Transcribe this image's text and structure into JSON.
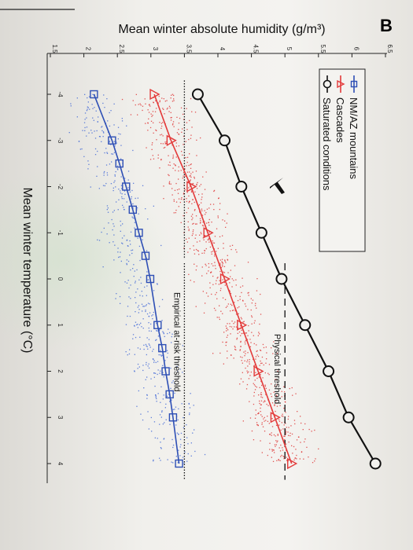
{
  "panel_letter": "B",
  "chart_data": {
    "type": "scatter",
    "orientation": "rotated 90° clockwise (photo of printed page)",
    "xlabel": "Mean winter temperature (°C)",
    "ylabel": "Mean winter absolute humidity (g/m³)",
    "xlim": [
      -4.6,
      4.6
    ],
    "ylim": [
      1.5,
      6.5
    ],
    "xticks": [
      -4,
      -3,
      -2,
      -1,
      0,
      1,
      2,
      3,
      4
    ],
    "yticks": [
      1.5,
      2,
      2.5,
      3,
      3.5,
      4,
      4.5,
      5,
      5.5,
      6,
      6.5
    ],
    "legend_position": "top-left",
    "series": [
      {
        "name": "NM/AZ mountains",
        "color": "#2e4fb5",
        "marker": "square",
        "x": [
          -4,
          -3,
          -2.5,
          -2,
          -1.5,
          -1,
          -0.5,
          0,
          1,
          1.5,
          2,
          2.5,
          3,
          4
        ],
        "y": [
          2.15,
          2.42,
          2.53,
          2.63,
          2.73,
          2.82,
          2.92,
          2.99,
          3.1,
          3.17,
          3.22,
          3.28,
          3.33,
          3.42
        ]
      },
      {
        "name": "Cascades",
        "color": "#e33a3a",
        "marker": "triangle",
        "x": [
          -4,
          -3,
          -2,
          -1,
          0,
          1,
          2,
          3,
          4
        ],
        "y": [
          3.05,
          3.3,
          3.6,
          3.85,
          4.1,
          4.35,
          4.6,
          4.85,
          5.1
        ]
      },
      {
        "name": "Saturated conditions",
        "color": "#111111",
        "marker": "circle",
        "x": [
          -4,
          -3,
          -2,
          -1,
          0,
          1,
          2,
          3,
          4
        ],
        "y": [
          3.7,
          4.1,
          4.35,
          4.65,
          4.95,
          5.3,
          5.65,
          5.95,
          6.35
        ]
      }
    ],
    "scatter_clouds": [
      {
        "series": "NM/AZ mountains",
        "color": "#3b63d6",
        "x_range": [
          -4,
          4
        ],
        "y_center_at_xmin": 2.15,
        "y_center_at_xmax": 3.42,
        "y_spread": 0.55
      },
      {
        "series": "Cascades",
        "color": "#dd2c2c",
        "x_range": [
          -4,
          4
        ],
        "y_center_at_xmin": 3.05,
        "y_center_at_xmax": 5.1,
        "y_spread": 0.6
      }
    ],
    "reference_lines": [
      {
        "label": "Physical threshold",
        "y": 5.0,
        "style": "dashed"
      },
      {
        "label": "Empirical at-risk threshold",
        "y": 3.5,
        "style": "dotted"
      }
    ]
  }
}
